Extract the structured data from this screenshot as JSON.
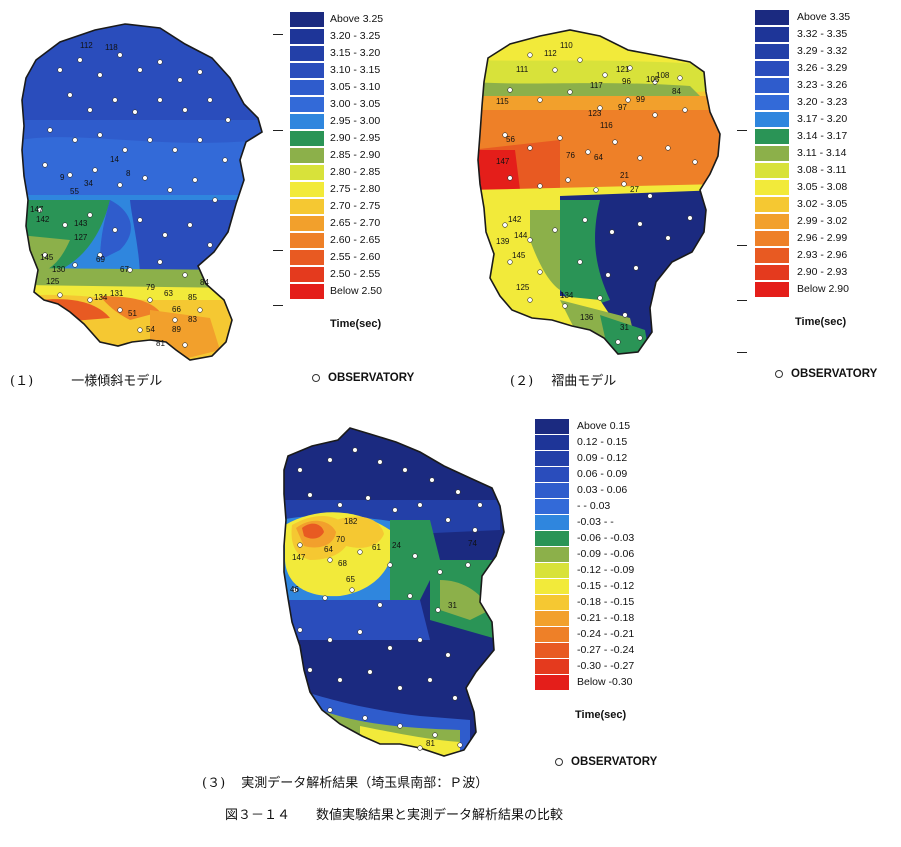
{
  "panels": [
    {
      "id": "p1",
      "caption_no": "(１)",
      "caption_title": "一様傾斜モデル",
      "legend_title": "Time(sec)",
      "observatory_label": "OBSERVATORY",
      "legend": [
        {
          "label": "Above   3.25",
          "color": "#1b2a80"
        },
        {
          "label": "3.20 - 3.25",
          "color": "#1e3598"
        },
        {
          "label": "3.15 - 3.20",
          "color": "#2340a8"
        },
        {
          "label": "3.10 - 3.15",
          "color": "#2a4dbc"
        },
        {
          "label": "3.05 - 3.10",
          "color": "#2f5ccc"
        },
        {
          "label": "3.00 - 3.05",
          "color": "#336ad8"
        },
        {
          "label": "2.95 - 3.00",
          "color": "#2f86de"
        },
        {
          "label": "2.90 - 2.95",
          "color": "#2a9456"
        },
        {
          "label": "2.85 - 2.90",
          "color": "#8cb04a"
        },
        {
          "label": "2.80 - 2.85",
          "color": "#d8e23a"
        },
        {
          "label": "2.75 - 2.80",
          "color": "#f2ea3a"
        },
        {
          "label": "2.70 - 2.75",
          "color": "#f5c832"
        },
        {
          "label": "2.65 - 2.70",
          "color": "#f2a02c"
        },
        {
          "label": "2.60 - 2.65",
          "color": "#ee8028"
        },
        {
          "label": "2.55 - 2.60",
          "color": "#e85a22"
        },
        {
          "label": "2.50 - 2.55",
          "color": "#e43a1e"
        },
        {
          "label": "Below   2.50",
          "color": "#e41e1a"
        }
      ],
      "station_labels": [
        "112",
        "118",
        "147",
        "142",
        "143",
        "145",
        "125",
        "130",
        "127",
        "134",
        "131",
        "79",
        "51",
        "54",
        "63",
        "66",
        "85",
        "81",
        "83",
        "89",
        "84",
        "67",
        "69",
        "55",
        "9",
        "34",
        "14",
        "8"
      ]
    },
    {
      "id": "p2",
      "caption_no": "(２)",
      "caption_title": "褶曲モデル",
      "legend_title": "Time(sec)",
      "observatory_label": "OBSERVATORY",
      "legend": [
        {
          "label": "Above   3.35",
          "color": "#1b2a80"
        },
        {
          "label": "3.32 - 3.35",
          "color": "#1e3598"
        },
        {
          "label": "3.29 - 3.32",
          "color": "#2340a8"
        },
        {
          "label": "3.26 - 3.29",
          "color": "#2a4dbc"
        },
        {
          "label": "3.23 - 3.26",
          "color": "#2f5ccc"
        },
        {
          "label": "3.20 - 3.23",
          "color": "#336ad8"
        },
        {
          "label": "3.17 - 3.20",
          "color": "#2f86de"
        },
        {
          "label": "3.14 - 3.17",
          "color": "#2a9456"
        },
        {
          "label": "3.11 - 3.14",
          "color": "#8cb04a"
        },
        {
          "label": "3.08 - 3.11",
          "color": "#d8e23a"
        },
        {
          "label": "3.05 - 3.08",
          "color": "#f2ea3a"
        },
        {
          "label": "3.02 - 3.05",
          "color": "#f5c832"
        },
        {
          "label": "2.99 - 3.02",
          "color": "#f2a02c"
        },
        {
          "label": "2.96 - 2.99",
          "color": "#ee8028"
        },
        {
          "label": "2.93 - 2.96",
          "color": "#e85a22"
        },
        {
          "label": "2.90 - 2.93",
          "color": "#e43a1e"
        },
        {
          "label": "Below   2.90",
          "color": "#e41e1a"
        }
      ],
      "station_labels": [
        "110",
        "112",
        "111",
        "121",
        "96",
        "105",
        "84",
        "108",
        "115",
        "117",
        "123",
        "97",
        "116",
        "99",
        "56",
        "147",
        "76",
        "64",
        "21",
        "27",
        "142",
        "144",
        "139",
        "145",
        "125",
        "134",
        "136",
        "31"
      ]
    },
    {
      "id": "p3",
      "caption_no": "(３)",
      "caption_title": "実測データ解析結果（埼玉県南部：Ｐ波）",
      "legend_title": "Time(sec)",
      "observatory_label": "OBSERVATORY",
      "legend": [
        {
          "label": "Above   0.15",
          "color": "#1b2a80"
        },
        {
          "label": "0.12 -  0.15",
          "color": "#1e3598"
        },
        {
          "label": "0.09 -  0.12",
          "color": "#2340a8"
        },
        {
          "label": "0.06 -  0.09",
          "color": "#2a4dbc"
        },
        {
          "label": "0.03 -  0.06",
          "color": "#2f5ccc"
        },
        {
          "label": "- -  0.03",
          "color": "#336ad8"
        },
        {
          "label": "-0.03 -    -",
          "color": "#2f86de"
        },
        {
          "label": "-0.06 - -0.03",
          "color": "#2a9456"
        },
        {
          "label": "-0.09 - -0.06",
          "color": "#8cb04a"
        },
        {
          "label": "-0.12 - -0.09",
          "color": "#d8e23a"
        },
        {
          "label": "-0.15 - -0.12",
          "color": "#f2ea3a"
        },
        {
          "label": "-0.18 - -0.15",
          "color": "#f5c832"
        },
        {
          "label": "-0.21 - -0.18",
          "color": "#f2a02c"
        },
        {
          "label": "-0.24 - -0.21",
          "color": "#ee8028"
        },
        {
          "label": "-0.27 - -0.24",
          "color": "#e85a22"
        },
        {
          "label": "-0.30 - -0.27",
          "color": "#e43a1e"
        },
        {
          "label": "Below  -0.30",
          "color": "#e41e1a"
        }
      ],
      "station_labels": [
        "182",
        "147",
        "64",
        "70",
        "61",
        "68",
        "65",
        "24",
        "46",
        "74",
        "31",
        "81"
      ]
    }
  ],
  "figure_caption": "図３－１４　　数値実験結果と実測データ解析結果の比較"
}
